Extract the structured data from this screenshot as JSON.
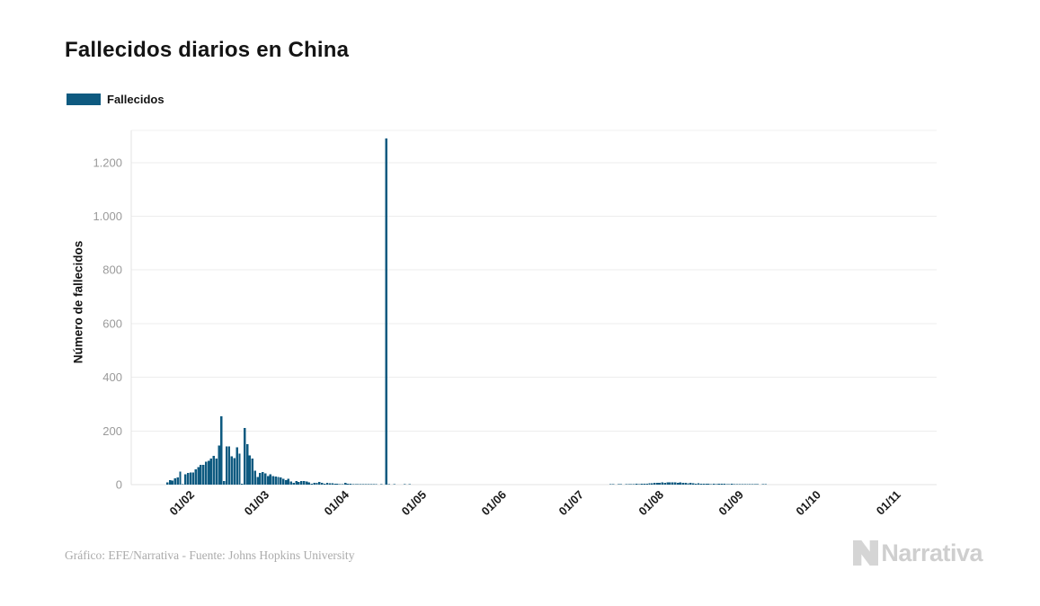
{
  "header": {
    "title": "Fallecidos diarios en China"
  },
  "legend": {
    "items": [
      {
        "label": "Fallecidos",
        "color": "#0e5a80"
      }
    ]
  },
  "chart_data": {
    "type": "bar",
    "title": "Fallecidos diarios en China",
    "series_name": "Fallecidos",
    "ylabel": "Número de fallecidos",
    "xlabel": "",
    "bar_color": "#0e5a80",
    "grid": true,
    "grid_color": "#ededed",
    "axis_line_color": "#e3e3e3",
    "tick_label_color_y": "#9a9a9a",
    "tick_label_color_x": "#1a1a1a",
    "ylim": [
      0,
      1320
    ],
    "y_ticks": [
      {
        "value": 0,
        "label": "0"
      },
      {
        "value": 200,
        "label": "200"
      },
      {
        "value": 400,
        "label": "400"
      },
      {
        "value": 600,
        "label": "600"
      },
      {
        "value": 800,
        "label": "800"
      },
      {
        "value": 1000,
        "label": "1.000"
      },
      {
        "value": 1200,
        "label": "1.200"
      }
    ],
    "x_ticks": [
      {
        "date": "2020-02-01",
        "label": "01/02"
      },
      {
        "date": "2020-03-01",
        "label": "01/03"
      },
      {
        "date": "2020-04-01",
        "label": "01/04"
      },
      {
        "date": "2020-05-01",
        "label": "01/05"
      },
      {
        "date": "2020-06-01",
        "label": "01/06"
      },
      {
        "date": "2020-07-01",
        "label": "01/07"
      },
      {
        "date": "2020-08-01",
        "label": "01/08"
      },
      {
        "date": "2020-09-01",
        "label": "01/09"
      },
      {
        "date": "2020-10-01",
        "label": "01/10"
      },
      {
        "date": "2020-11-01",
        "label": "01/11"
      }
    ],
    "x_axis_span": [
      "2020-01-09",
      "2020-11-16"
    ],
    "interval": "daily",
    "start_date": "2020-01-22",
    "end_date": "2020-09-11",
    "values": [
      0,
      8,
      16,
      15,
      24,
      26,
      49,
      2,
      38,
      43,
      46,
      45,
      57,
      65,
      73,
      73,
      86,
      89,
      97,
      108,
      97,
      146,
      254,
      13,
      143,
      142,
      106,
      98,
      139,
      115,
      3,
      211,
      150,
      109,
      97,
      52,
      29,
      44,
      47,
      42,
      31,
      38,
      31,
      30,
      28,
      27,
      22,
      17,
      22,
      11,
      7,
      13,
      10,
      14,
      13,
      11,
      8,
      3,
      7,
      6,
      10,
      7,
      4,
      6,
      5,
      5,
      3,
      4,
      2,
      1,
      6,
      4,
      3,
      1,
      2,
      1,
      2,
      2,
      1,
      1,
      2,
      1,
      1,
      0,
      1,
      0,
      1290,
      1,
      0,
      1,
      0,
      0,
      0,
      1,
      0,
      1,
      0,
      0,
      0,
      0,
      0,
      0,
      0,
      0,
      0,
      0,
      0,
      0,
      0,
      0,
      0,
      0,
      0,
      0,
      0,
      0,
      0,
      0,
      0,
      0,
      0,
      0,
      0,
      0,
      0,
      0,
      0,
      0,
      0,
      0,
      0,
      0,
      0,
      0,
      0,
      0,
      0,
      0,
      0,
      0,
      0,
      0,
      0,
      0,
      0,
      0,
      0,
      0,
      0,
      0,
      0,
      0,
      0,
      0,
      0,
      0,
      0,
      0,
      0,
      0,
      0,
      0,
      0,
      0,
      0,
      0,
      0,
      0,
      0,
      0,
      0,
      0,
      0,
      1,
      1,
      0,
      1,
      1,
      0,
      2,
      1,
      2,
      2,
      3,
      2,
      4,
      3,
      4,
      5,
      5,
      6,
      6,
      7,
      8,
      7,
      9,
      8,
      9,
      8,
      7,
      8,
      6,
      7,
      5,
      6,
      5,
      4,
      5,
      4,
      3,
      4,
      3,
      2,
      3,
      2,
      3,
      4,
      3,
      2,
      2,
      3,
      2,
      1,
      2,
      1,
      1,
      2,
      1,
      1,
      1,
      1,
      0,
      1,
      1
    ],
    "peak_value": 1290,
    "peak_date": "2020-04-17"
  },
  "footer": {
    "credit": "Gráfico: EFE/Narrativa - Fuente: Johns Hopkins University",
    "logo_text": "Narrativa"
  }
}
